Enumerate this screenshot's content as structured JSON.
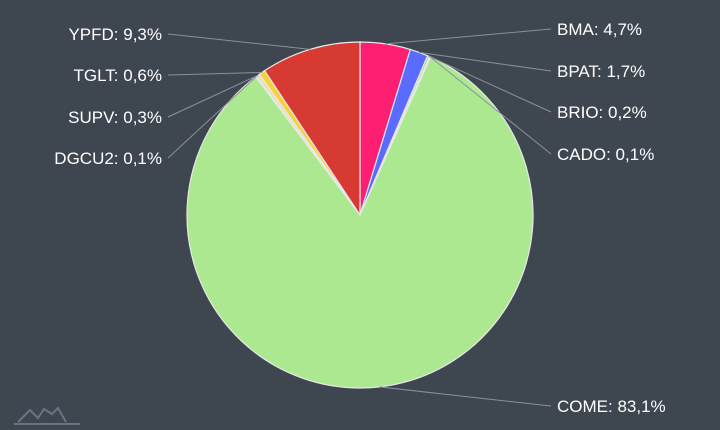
{
  "chart_data": {
    "type": "pie",
    "title": "",
    "slices": [
      {
        "label": "BMA",
        "value": 4.7,
        "display": "BMA: 4,7%",
        "color": "#ff1f72"
      },
      {
        "label": "BPAT",
        "value": 1.7,
        "display": "BPAT: 1,7%",
        "color": "#5a6bff"
      },
      {
        "label": "BRIO",
        "value": 0.2,
        "display": "BRIO: 0,2%",
        "color": "#9be38a"
      },
      {
        "label": "CADO",
        "value": 0.1,
        "display": "CADO: 0,1%",
        "color": "#f0d070"
      },
      {
        "label": "COME",
        "value": 83.1,
        "display": "COME: 83,1%",
        "color": "#abe890"
      },
      {
        "label": "DGCU2",
        "value": 0.1,
        "display": "DGCU2: 0,1%",
        "color": "#c9c0e0"
      },
      {
        "label": "SUPV",
        "value": 0.3,
        "display": "SUPV: 0,3%",
        "color": "#e8e0b0"
      },
      {
        "label": "TGLT",
        "value": 0.6,
        "display": "TGLT: 0,6%",
        "color": "#f5d23c"
      },
      {
        "label": "YPFD",
        "value": 9.3,
        "display": "YPFD: 9,3%",
        "color": "#d63a32"
      }
    ],
    "legend": "none",
    "start_angle": "top, clockwise"
  }
}
